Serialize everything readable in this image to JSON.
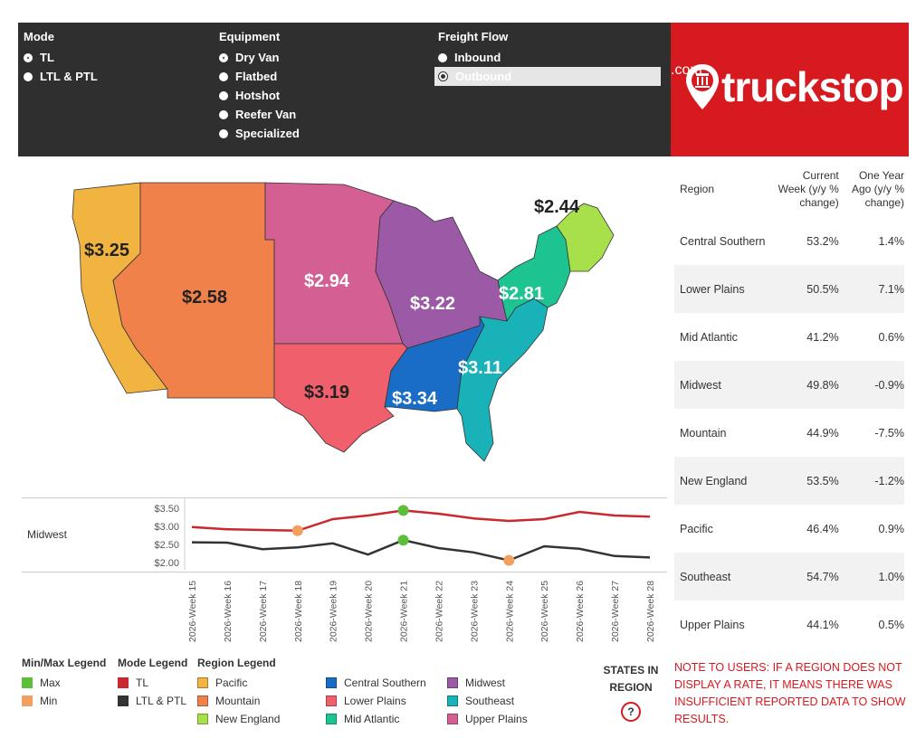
{
  "filters": {
    "mode": {
      "title": "Mode",
      "options": [
        "TL",
        "LTL & PTL"
      ],
      "selected": 0
    },
    "equipment": {
      "title": "Equipment",
      "options": [
        "Dry Van",
        "Flatbed",
        "Hotshot",
        "Reefer Van",
        "Specialized"
      ],
      "selected": 0
    },
    "freight_flow": {
      "title": "Freight Flow",
      "options": [
        "Inbound",
        "Outbound"
      ],
      "selected": 1
    }
  },
  "brand": {
    "name": "truckstop",
    "suffix": ".com"
  },
  "table": {
    "headers": [
      "Region",
      "Current Week (y/y % change)",
      "One Year Ago (y/y % change)"
    ],
    "rows": [
      [
        "Central Southern",
        "53.2%",
        "1.4%"
      ],
      [
        "Lower Plains",
        "50.5%",
        "7.1%"
      ],
      [
        "Mid Atlantic",
        "41.2%",
        "0.6%"
      ],
      [
        "Midwest",
        "49.8%",
        "-0.9%"
      ],
      [
        "Mountain",
        "44.9%",
        "-7.5%"
      ],
      [
        "New England",
        "53.5%",
        "-1.2%"
      ],
      [
        "Pacific",
        "46.4%",
        "0.9%"
      ],
      [
        "Southeast",
        "54.7%",
        "1.0%"
      ],
      [
        "Upper Plains",
        "44.1%",
        "0.5%"
      ]
    ]
  },
  "map": {
    "rates": {
      "pacific": "$3.25",
      "mountain": "$2.58",
      "upper_plains": "$2.94",
      "midwest": "$3.22",
      "mid_atlantic": "$2.81",
      "new_england": "$2.44",
      "southeast": "$3.11",
      "central_southern": "$3.34",
      "lower_plains": "$3.19"
    },
    "colors": {
      "pacific": "#f2b441",
      "mountain": "#f0814a",
      "upper_plains": "#d35f93",
      "midwest": "#9b59a6",
      "mid_atlantic": "#1dc492",
      "new_england": "#a7e04a",
      "southeast": "#19b2b8",
      "central_southern": "#1a6dc4",
      "lower_plains": "#ef5f6c"
    }
  },
  "line_chart": {
    "row_label": "Midwest",
    "y_ticks": [
      "$3.50",
      "$3.00",
      "$2.50",
      "$2.00"
    ],
    "chart_data": {
      "type": "line",
      "x": [
        "2026-Week 15",
        "2026-Week 16",
        "2026-Week 17",
        "2026-Week 18",
        "2026-Week 19",
        "2026-Week 20",
        "2026-Week 21",
        "2026-Week 22",
        "2026-Week 23",
        "2026-Week 24",
        "2026-Week 25",
        "2026-Week 26",
        "2026-Week 27",
        "2026-Week 28"
      ],
      "ylim": [
        1.9,
        3.6
      ],
      "series": [
        {
          "name": "TL",
          "color": "#c9282d",
          "values": [
            2.98,
            2.92,
            2.9,
            2.88,
            3.2,
            3.3,
            3.44,
            3.35,
            3.22,
            3.15,
            3.2,
            3.4,
            3.3,
            3.27
          ],
          "max_index": 6,
          "min_index": 3
        },
        {
          "name": "LTL & PTL",
          "color": "#333333",
          "values": [
            2.56,
            2.55,
            2.37,
            2.42,
            2.53,
            2.22,
            2.62,
            2.4,
            2.28,
            2.06,
            2.45,
            2.38,
            2.18,
            2.14
          ],
          "max_index": 6,
          "min_index": 9
        }
      ]
    }
  },
  "legends": {
    "minmax": {
      "title": "Min/Max Legend",
      "items": [
        {
          "label": "Max",
          "color": "#5cbf3a"
        },
        {
          "label": "Min",
          "color": "#f2a05f"
        }
      ]
    },
    "mode": {
      "title": "Mode Legend",
      "items": [
        {
          "label": "TL",
          "color": "#c9282d"
        },
        {
          "label": "LTL & PTL",
          "color": "#333333"
        }
      ]
    },
    "region": {
      "title": "Region Legend",
      "items": [
        {
          "label": "Pacific",
          "color": "#f2b441"
        },
        {
          "label": "Mountain",
          "color": "#f0814a"
        },
        {
          "label": "New England",
          "color": "#a7e04a"
        },
        {
          "label": "Central Southern",
          "color": "#1a6dc4"
        },
        {
          "label": "Lower Plains",
          "color": "#ef5f6c"
        },
        {
          "label": "Mid Atlantic",
          "color": "#1dc492"
        },
        {
          "label": "Midwest",
          "color": "#9b59a6"
        },
        {
          "label": "Southeast",
          "color": "#19b2b8"
        },
        {
          "label": "Upper Plains",
          "color": "#d35f93"
        }
      ]
    }
  },
  "states_in_region": {
    "line1": "STATES IN",
    "line2": "REGION",
    "help": "?"
  },
  "note": "NOTE TO USERS: IF A REGION DOES NOT DISPLAY A RATE, IT MEANS THERE WAS INSUFFICIENT REPORTED DATA TO SHOW RESULTS."
}
